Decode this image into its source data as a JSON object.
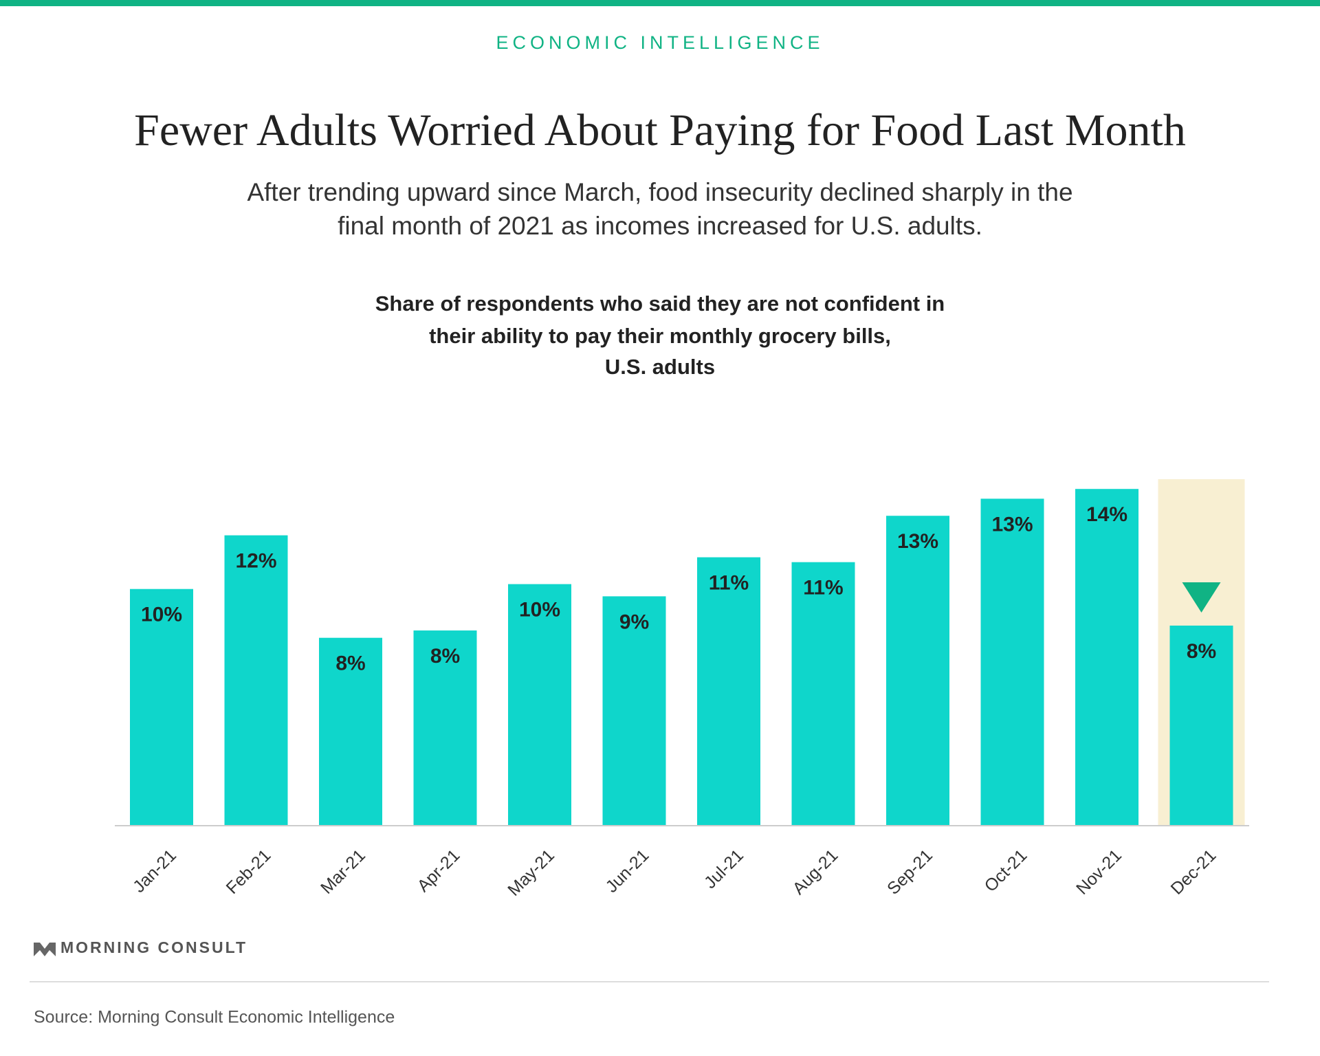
{
  "header": {
    "kicker": "ECONOMIC INTELLIGENCE",
    "title": "Fewer Adults Worried About Paying for Food Last Month",
    "subtitle": [
      "After trending upward since March, food insecurity declined sharply in the",
      "final month of 2021 as incomes increased for U.S. adults."
    ]
  },
  "chart_data": {
    "type": "bar",
    "title": [
      "Share of respondents who said they are not confident in",
      "their ability to pay their monthly grocery bills,",
      "U.S. adults"
    ],
    "categories": [
      "Jan-21",
      "Feb-21",
      "Mar-21",
      "Apr-21",
      "May-21",
      "Jun-21",
      "Jul-21",
      "Aug-21",
      "Sep-21",
      "Oct-21",
      "Nov-21",
      "Dec-21"
    ],
    "values": [
      9.7,
      11.9,
      7.7,
      8.0,
      9.9,
      9.4,
      11.0,
      10.8,
      12.7,
      13.4,
      13.8,
      8.2
    ],
    "value_labels": [
      "10%",
      "12%",
      "8%",
      "8%",
      "10%",
      "9%",
      "11%",
      "11%",
      "13%",
      "13%",
      "14%",
      "8%"
    ],
    "color": "#0fd6cb",
    "ylim": [
      0,
      14.2
    ]
  },
  "footer": {
    "brand": "MORNING CONSULT",
    "source": "Source: Morning Consult Economic Intelligence"
  }
}
